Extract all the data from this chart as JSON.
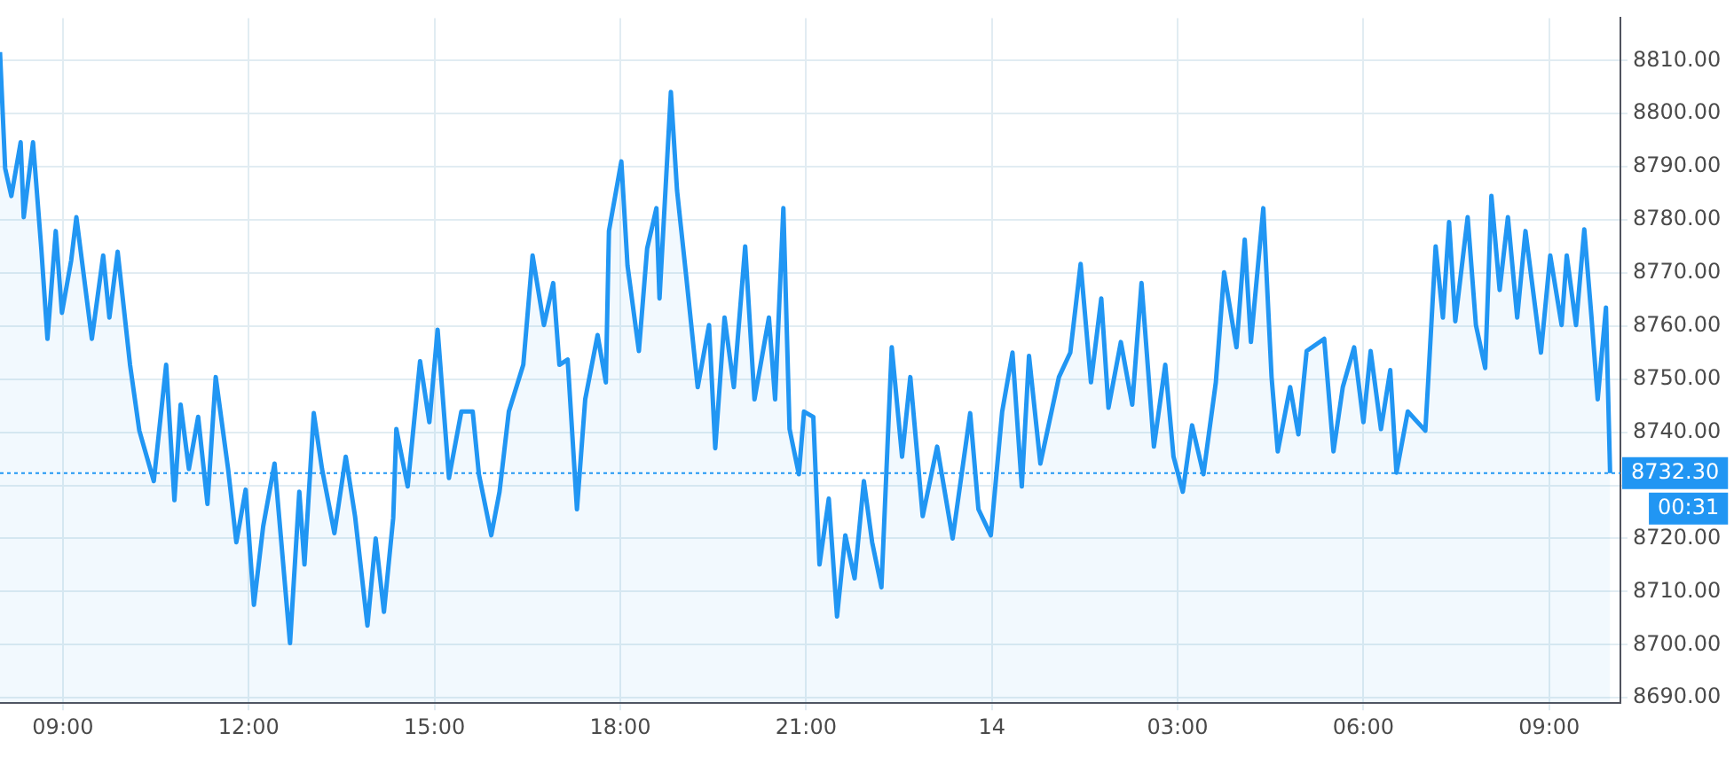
{
  "chart_data": {
    "type": "area",
    "x": [
      "--11-13T07:59",
      "--11-13T08:04",
      "--11-13T08:10",
      "--11-13T08:19",
      "--11-13T08:22",
      "--11-13T08:31",
      "--11-13T08:39",
      "--11-13T08:45",
      "--11-13T08:53",
      "--11-13T08:59",
      "--11-13T09:08",
      "--11-13T09:13",
      "--11-13T09:28",
      "--11-13T09:39",
      "--11-13T09:45",
      "--11-13T09:53",
      "--11-13T10:05",
      "--11-13T10:14",
      "--11-13T10:28",
      "--11-13T10:40",
      "--11-13T10:48",
      "--11-13T10:54",
      "--11-13T11:02",
      "--11-13T11:11",
      "--11-13T11:20",
      "--11-13T11:28",
      "--11-13T11:40",
      "--11-13T11:48",
      "--11-13T11:57",
      "--11-13T12:05",
      "--11-13T12:14",
      "--11-13T12:25",
      "--11-13T12:40",
      "--11-13T12:49",
      "--11-13T12:54",
      "--11-13T13:03",
      "--11-13T13:11",
      "--11-13T13:23",
      "--11-13T13:34",
      "--11-13T13:43",
      "--11-13T13:55",
      "--11-13T14:03",
      "--11-13T14:11",
      "--11-13T14:20",
      "--11-13T14:23",
      "--11-13T14:34",
      "--11-13T14:46",
      "--11-13T14:55",
      "--11-13T15:03",
      "--11-13T15:14",
      "--11-13T15:26",
      "--11-13T15:37",
      "--11-13T15:43",
      "--11-13T15:55",
      "--11-13T16:03",
      "--11-13T16:12",
      "--11-13T16:26",
      "--11-13T16:35",
      "--11-13T16:46",
      "--11-13T16:55",
      "--11-13T17:01",
      "--11-13T17:09",
      "--11-13T17:18",
      "--11-13T17:26",
      "--11-13T17:38",
      "--11-13T17:46",
      "--11-13T17:49",
      "--11-13T18:01",
      "--11-13T18:07",
      "--11-13T18:18",
      "--11-13T18:26",
      "--11-13T18:35",
      "--11-13T18:38",
      "--11-13T18:49",
      "--11-13T18:55",
      "--11-13T19:04",
      "--11-13T19:15",
      "--11-13T19:26",
      "--11-13T19:32",
      "--11-13T19:41",
      "--11-13T19:50",
      "--11-13T20:01",
      "--11-13T20:10",
      "--11-13T20:24",
      "--11-13T20:30",
      "--11-13T20:38",
      "--11-13T20:44",
      "--11-13T20:53",
      "--11-13T20:58",
      "--11-13T21:07",
      "--11-13T21:13",
      "--11-13T21:22",
      "--11-13T21:30",
      "--11-13T21:38",
      "--11-13T21:47",
      "--11-13T21:56",
      "--11-13T22:04",
      "--11-13T22:13",
      "--11-13T22:23",
      "--11-13T22:33",
      "--11-13T22:41",
      "--11-13T22:53",
      "--11-13T23:07",
      "--11-13T23:22",
      "--11-13T23:39",
      "--11-13T23:47",
      "--11-13T23:59",
      "--11-14T00:10",
      "--11-14T00:20",
      "--11-14T00:29",
      "--11-14T00:36",
      "--11-14T00:47",
      "--11-14T01:05",
      "--11-14T01:16",
      "--11-14T01:26",
      "--11-14T01:36",
      "--11-14T01:46",
      "--11-14T01:53",
      "--11-14T02:05",
      "--11-14T02:16",
      "--11-14T02:25",
      "--11-14T02:37",
      "--11-14T02:48",
      "--11-14T02:56",
      "--11-14T03:05",
      "--11-14T03:14",
      "--11-14T03:25",
      "--11-14T03:37",
      "--11-14T03:45",
      "--11-14T03:57",
      "--11-14T04:05",
      "--11-14T04:11",
      "--11-14T04:23",
      "--11-14T04:31",
      "--11-14T04:37",
      "--11-14T04:49",
      "--11-14T04:57",
      "--11-14T05:05",
      "--11-14T05:22",
      "--11-14T05:31",
      "--11-14T05:40",
      "--11-14T05:51",
      "--11-14T06:00",
      "--11-14T06:07",
      "--11-14T06:17",
      "--11-14T06:26",
      "--11-14T06:32",
      "--11-14T06:43",
      "--11-14T07:00",
      "--11-14T07:03",
      "--11-14T07:10",
      "--11-14T07:17",
      "--11-14T07:23",
      "--11-14T07:29",
      "--11-14T07:41",
      "--11-14T07:49",
      "--11-14T07:58",
      "--11-14T08:04",
      "--11-14T08:12",
      "--11-14T08:20",
      "--11-14T08:29",
      "--11-14T08:37",
      "--11-14T08:52",
      "--11-14T09:01",
      "--11-14T09:12",
      "--11-14T09:17",
      "--11-14T09:26",
      "--11-14T09:34",
      "--11-14T09:41",
      "--11-14T09:47",
      "--11-14T09:55",
      "--11-14T09:59"
    ],
    "series": [
      {
        "color": "#2196f3",
        "values": [
          8811.6,
          8789.7,
          8784.5,
          8794.6,
          8780.5,
          8794.6,
          8774.6,
          8757.6,
          8777.9,
          8762.5,
          8772.4,
          8780.5,
          8757.6,
          8773.3,
          8761.6,
          8774.0,
          8752.7,
          8740.3,
          8730.8,
          8752.7,
          8727.2,
          8745.2,
          8733.1,
          8742.9,
          8726.5,
          8750.4,
          8733.1,
          8719.3,
          8729.2,
          8707.5,
          8722.3,
          8734.1,
          8700.3,
          8728.8,
          8715.1,
          8743.6,
          8733.1,
          8721.0,
          8735.4,
          8724.2,
          8703.6,
          8720.0,
          8706.2,
          8723.9,
          8740.6,
          8729.8,
          8753.4,
          8741.9,
          8759.3,
          8731.4,
          8743.9,
          8743.9,
          8732.1,
          8720.6,
          8728.8,
          8743.9,
          8752.7,
          8773.3,
          8760.2,
          8768.1,
          8752.7,
          8753.7,
          8725.5,
          8746.2,
          8758.3,
          8749.4,
          8777.9,
          8791.0,
          8771.4,
          8755.3,
          8774.6,
          8782.2,
          8765.2,
          8804.1,
          8785.5,
          8769.1,
          8748.5,
          8760.2,
          8737.0,
          8761.6,
          8748.5,
          8775.0,
          8746.2,
          8761.6,
          8746.2,
          8782.2,
          8740.6,
          8732.1,
          8743.9,
          8742.9,
          8715.1,
          8727.5,
          8705.3,
          8720.6,
          8712.5,
          8730.8,
          8719.3,
          8710.8,
          8756.0,
          8735.4,
          8750.4,
          8724.2,
          8737.3,
          8720.0,
          8743.6,
          8725.5,
          8720.6,
          8743.9,
          8755.0,
          8729.8,
          8754.4,
          8734.1,
          8750.4,
          8755.0,
          8771.7,
          8749.4,
          8765.2,
          8744.6,
          8757.0,
          8745.2,
          8768.1,
          8737.3,
          8752.7,
          8735.4,
          8728.8,
          8741.3,
          8732.1,
          8749.4,
          8770.1,
          8756.0,
          8776.3,
          8757.0,
          8782.2,
          8750.4,
          8736.4,
          8748.5,
          8739.6,
          8755.3,
          8757.6,
          8736.4,
          8748.5,
          8756.0,
          8741.9,
          8755.3,
          8740.6,
          8751.7,
          8732.4,
          8743.9,
          8740.3,
          8750.4,
          8775.0,
          8761.6,
          8779.6,
          8760.9,
          8780.5,
          8760.2,
          8752.1,
          8784.5,
          8766.8,
          8780.5,
          8761.6,
          8777.9,
          8755.0,
          8773.3,
          8760.2,
          8773.3,
          8760.2,
          8778.2,
          8761.6,
          8746.2,
          8763.5,
          8732.3
        ]
      }
    ],
    "xlim": [
      "--11-13T07:59",
      "--11-14T10:09"
    ],
    "xticks": [
      {
        "value": "--11-13T09:00",
        "label": "09:00"
      },
      {
        "value": "--11-13T12:00",
        "label": "12:00"
      },
      {
        "value": "--11-13T15:00",
        "label": "15:00"
      },
      {
        "value": "--11-13T18:00",
        "label": "18:00"
      },
      {
        "value": "--11-13T21:00",
        "label": "21:00"
      },
      {
        "value": "--11-14",
        "label": "14"
      },
      {
        "value": "--11-14T03:00",
        "label": "03:00"
      },
      {
        "value": "--11-14T06:00",
        "label": "06:00"
      },
      {
        "value": "--11-14T09:00",
        "label": "09:00"
      }
    ],
    "ylim": [
      8689,
      8818
    ],
    "yticks": [
      {
        "value": 8690,
        "label": "8690.00"
      },
      {
        "value": 8700,
        "label": "8700.00"
      },
      {
        "value": 8710,
        "label": "8710.00"
      },
      {
        "value": 8720,
        "label": "8720.00"
      },
      {
        "value": 8730,
        "label": null
      },
      {
        "value": 8740,
        "label": "8740.00"
      },
      {
        "value": 8750,
        "label": "8750.00"
      },
      {
        "value": 8760,
        "label": "8760.00"
      },
      {
        "value": 8770,
        "label": "8770.00"
      },
      {
        "value": 8780,
        "label": "8780.00"
      },
      {
        "value": 8790,
        "label": "8790.00"
      },
      {
        "value": 8800,
        "label": "8800.00"
      },
      {
        "value": 8810,
        "label": "8810.00"
      }
    ],
    "ref_lines": [
      {
        "axis": "y",
        "value": 8732.3,
        "label": "8732.30",
        "color": "#2196f3",
        "line_style": "dotted"
      }
    ],
    "annotations": [
      "00:31"
    ],
    "grid": true,
    "legend": false,
    "marker": "none",
    "line_style": "solid"
  }
}
